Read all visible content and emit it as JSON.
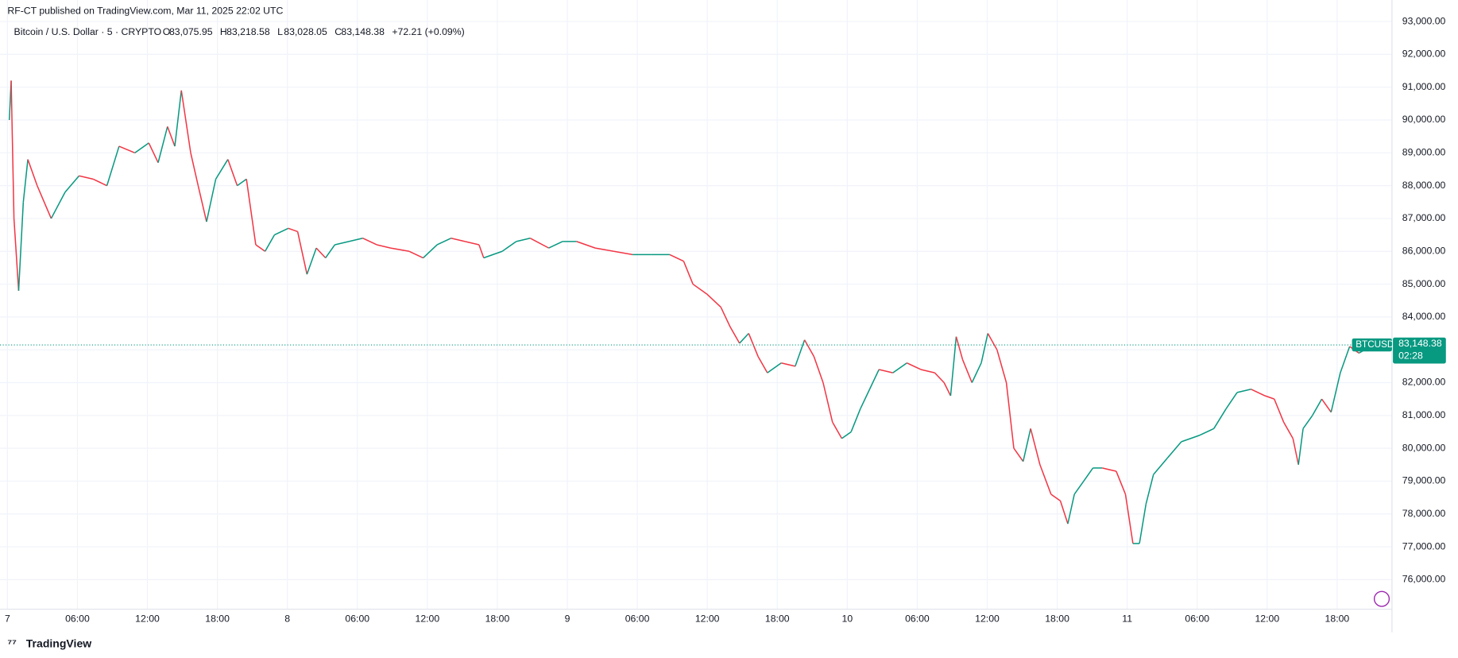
{
  "header": {
    "published": "RF-CT published on TradingView.com, Mar 11, 2025 22:02 UTC",
    "symbol": "Bitcoin / U.S. Dollar · 5 · CRYPTO",
    "ohlc": [
      {
        "key": "O",
        "value": "83,075.95"
      },
      {
        "key": "H",
        "value": "83,218.58"
      },
      {
        "key": "L",
        "value": "83,028.05"
      },
      {
        "key": "C",
        "value": "83,148.38"
      }
    ],
    "change": "+72.21 (+0.09%)",
    "ticker": "BTCUSD",
    "last_price": {
      "value": 83148.38,
      "label": "83,148.38"
    },
    "countdown": "02:28",
    "brand": "TradingView"
  },
  "chart_data": {
    "type": "line",
    "up_color": "#089981",
    "down_color": "#f23645",
    "grid": true,
    "x": [
      0.16,
      0.32,
      0.56,
      0.96,
      1.36,
      1.75,
      2.55,
      3.75,
      4.94,
      6.14,
      7.34,
      8.53,
      9.57,
      10.92,
      12.12,
      12.92,
      13.72,
      14.35,
      14.91,
      15.71,
      16.35,
      17.07,
      17.86,
      18.9,
      19.7,
      20.49,
      21.29,
      22.09,
      22.89,
      24.08,
      24.88,
      25.68,
      26.48,
      27.27,
      28.07,
      29.27,
      30.46,
      31.66,
      32.85,
      34.45,
      35.64,
      36.84,
      38.04,
      39.23,
      40.43,
      40.83,
      42.42,
      43.62,
      44.81,
      46.41,
      47.6,
      48.8,
      50.39,
      51.99,
      53.59,
      55.18,
      56.78,
      57.97,
      58.77,
      59.96,
      61.16,
      61.96,
      62.76,
      63.55,
      64.35,
      65.15,
      66.34,
      67.54,
      68.34,
      69.14,
      69.93,
      70.73,
      71.53,
      72.33,
      73.12,
      73.92,
      74.72,
      75.91,
      77.11,
      78.31,
      79.5,
      80.3,
      80.86,
      81.34,
      81.89,
      82.69,
      83.49,
      84.05,
      84.84,
      85.64,
      86.28,
      87.08,
      87.72,
      88.52,
      89.47,
      90.27,
      90.91,
      91.47,
      92.27,
      93.06,
      93.86,
      95.06,
      95.85,
      96.49,
      97.05,
      97.61,
      98.25,
      99.44,
      100.64,
      102.23,
      103.43,
      104.47,
      105.42,
      106.62,
      107.81,
      108.61,
      109.41,
      110.21,
      110.68,
      111.08,
      111.88,
      112.68,
      113.48,
      114.27,
      115.07,
      115.87,
      117.07
    ],
    "values": [
      90000,
      91200,
      87000,
      84800,
      87500,
      88800,
      88000,
      87000,
      87800,
      88300,
      88200,
      88000,
      89200,
      89000,
      89300,
      88700,
      89800,
      89200,
      90900,
      89000,
      88000,
      86900,
      88200,
      88800,
      88000,
      88200,
      86200,
      86000,
      86500,
      86700,
      86600,
      85300,
      86100,
      85800,
      86200,
      86300,
      86400,
      86200,
      86100,
      86000,
      85800,
      86200,
      86400,
      86300,
      86200,
      85800,
      86000,
      86300,
      86400,
      86100,
      86300,
      86300,
      86100,
      86000,
      85900,
      85900,
      85900,
      85700,
      85000,
      84700,
      84300,
      83700,
      83200,
      83500,
      82800,
      82300,
      82600,
      82500,
      83300,
      82800,
      82000,
      80800,
      80300,
      80500,
      81200,
      81800,
      82400,
      82300,
      82600,
      82400,
      82300,
      82000,
      81600,
      83400,
      82700,
      82000,
      82600,
      83500,
      83000,
      82000,
      80000,
      79600,
      80600,
      79500,
      78600,
      78400,
      77700,
      78600,
      79000,
      79400,
      79400,
      79300,
      78600,
      77100,
      77100,
      78300,
      79200,
      79700,
      80200,
      80400,
      80600,
      81200,
      81700,
      81800,
      81600,
      81500,
      80800,
      80300,
      79500,
      80600,
      81000,
      81500,
      81100,
      82300,
      83100,
      82900,
      83148.38
    ],
    "xlim": [
      0,
      118.7
    ],
    "ylim": [
      75100,
      93230
    ],
    "xticks": [
      {
        "value": 0,
        "label": "7"
      },
      {
        "value": 6,
        "label": "06:00"
      },
      {
        "value": 12,
        "label": "12:00"
      },
      {
        "value": 18,
        "label": "18:00"
      },
      {
        "value": 24,
        "label": "8"
      },
      {
        "value": 30,
        "label": "06:00"
      },
      {
        "value": 36,
        "label": "12:00"
      },
      {
        "value": 42,
        "label": "18:00"
      },
      {
        "value": 48,
        "label": "9"
      },
      {
        "value": 54,
        "label": "06:00"
      },
      {
        "value": 60,
        "label": "12:00"
      },
      {
        "value": 66,
        "label": "18:00"
      },
      {
        "value": 72,
        "label": "10"
      },
      {
        "value": 78,
        "label": "06:00"
      },
      {
        "value": 84,
        "label": "12:00"
      },
      {
        "value": 90,
        "label": "18:00"
      },
      {
        "value": 96,
        "label": "11"
      },
      {
        "value": 102,
        "label": "06:00"
      },
      {
        "value": 108,
        "label": "12:00"
      },
      {
        "value": 114,
        "label": "18:00"
      }
    ],
    "yticks": [
      {
        "value": 76000,
        "label": "76,000.00"
      },
      {
        "value": 77000,
        "label": "77,000.00"
      },
      {
        "value": 78000,
        "label": "78,000.00"
      },
      {
        "value": 79000,
        "label": "79,000.00"
      },
      {
        "value": 80000,
        "label": "80,000.00"
      },
      {
        "value": 81000,
        "label": "81,000.00"
      },
      {
        "value": 82000,
        "label": "82,000.00"
      },
      {
        "value": 83000,
        "label": "83,000.00"
      },
      {
        "value": 84000,
        "label": "84,000.00"
      },
      {
        "value": 85000,
        "label": "85,000.00"
      },
      {
        "value": 86000,
        "label": "86,000.00"
      },
      {
        "value": 87000,
        "label": "87,000.00"
      },
      {
        "value": 88000,
        "label": "88,000.00"
      },
      {
        "value": 89000,
        "label": "89,000.00"
      },
      {
        "value": 90000,
        "label": "90,000.00"
      },
      {
        "value": 91000,
        "label": "91,000.00"
      },
      {
        "value": 92000,
        "label": "92,000.00"
      },
      {
        "value": 93000,
        "label": "93,000.00"
      }
    ]
  }
}
